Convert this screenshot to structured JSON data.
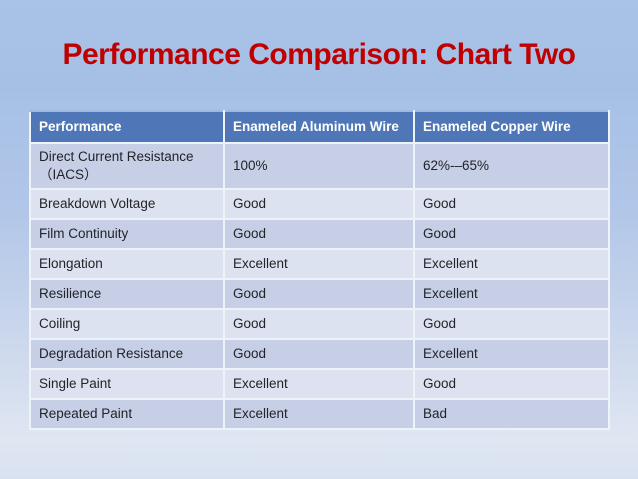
{
  "slide": {
    "title": "Performance Comparison: Chart Two",
    "title_color": "#c00000",
    "background_top_color": "#a9c2e7",
    "background_bottom_color": "#e0e7f3"
  },
  "table": {
    "header_bg_color": "#4f77b7",
    "row_dark_color": "#c6cfe5",
    "row_light_color": "#dce2ef",
    "columns": [
      "Performance",
      "Enameled Aluminum Wire",
      "Enameled Copper Wire"
    ],
    "rows": [
      {
        "cells": [
          "Direct Current Resistance\n（IACS）",
          "100%",
          "62%-–65%"
        ]
      },
      {
        "cells": [
          "Breakdown Voltage",
          "Good",
          "Good"
        ]
      },
      {
        "cells": [
          "Film Continuity",
          "Good",
          "Good"
        ]
      },
      {
        "cells": [
          "Elongation",
          "Excellent",
          "Excellent"
        ]
      },
      {
        "cells": [
          "Resilience",
          "Good",
          "Excellent"
        ]
      },
      {
        "cells": [
          "Coiling",
          "Good",
          "Good"
        ]
      },
      {
        "cells": [
          "Degradation Resistance",
          "Good",
          "Excellent"
        ]
      },
      {
        "cells": [
          "Single Paint",
          "Excellent",
          "Good"
        ]
      },
      {
        "cells": [
          "Repeated Paint",
          "Excellent",
          "Bad"
        ]
      }
    ]
  }
}
